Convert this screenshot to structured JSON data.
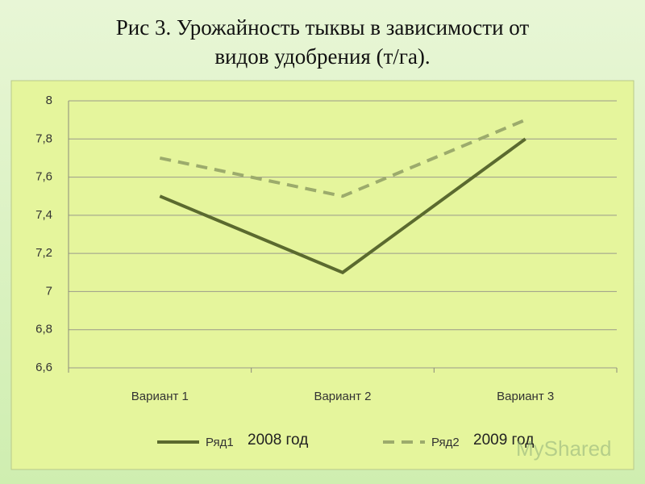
{
  "chart_data": {
    "type": "line",
    "title": "Рис 3. Урожайность тыквы в зависимости от видов удобрения (т/га).",
    "categories": [
      "Вариант 1",
      "Вариант 2",
      "Вариант 3"
    ],
    "series": [
      {
        "name": "Ряд1",
        "color": "#5b6a2f",
        "dash": false,
        "values": [
          7.5,
          7.1,
          7.8
        ]
      },
      {
        "name": "Ряд2",
        "color": "#9cab6c",
        "dash": true,
        "values": [
          7.7,
          7.5,
          7.9
        ]
      }
    ],
    "ylim": [
      6.6,
      8
    ],
    "yticks": [
      {
        "value": 6.6,
        "label": "6,6"
      },
      {
        "value": 6.8,
        "label": "6,8"
      },
      7,
      {
        "value": 7.2,
        "label": "7,2"
      },
      {
        "value": 7.4,
        "label": "7,4"
      },
      {
        "value": 7.6,
        "label": "7,6"
      },
      {
        "value": 7.8,
        "label": "7,8"
      },
      8
    ],
    "grid": true,
    "legend": "bottom",
    "annotations": [
      "2008 год",
      "2009 год"
    ],
    "watermark": "MyShared"
  }
}
